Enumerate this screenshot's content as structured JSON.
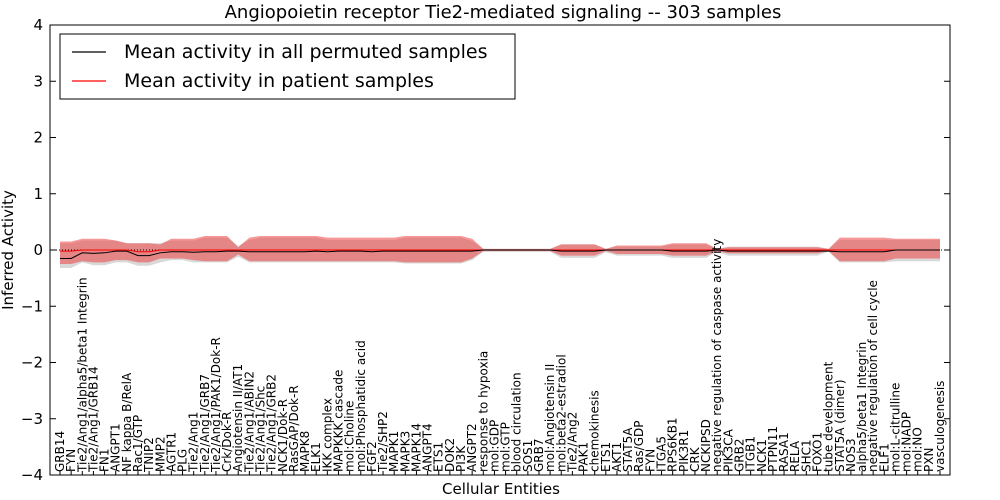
{
  "chart_data": {
    "type": "line",
    "title": "Angiopoietin receptor Tie2-mediated signaling -- 303 samples",
    "xlabel": "Cellular Entities",
    "ylabel": "Inferred Activity",
    "ylim": [
      -4,
      4
    ],
    "yticks": [
      -4,
      -3,
      -2,
      -1,
      0,
      1,
      2,
      3,
      4
    ],
    "ytick_labels": [
      "−4",
      "−3",
      "−2",
      "−1",
      "0",
      "1",
      "2",
      "3",
      "4"
    ],
    "legend_position": "top-left",
    "categories": [
      "GRB14",
      "FYN",
      "Tie2/Ang1/alpha5/beta1 Integrin",
      "Tie2/Ang1/GRB14",
      "FN1",
      "ANGPT1",
      "NF kappa B/RelA",
      "Rac1/GTP",
      "TNIP2",
      "MMP2",
      "AGTR1",
      "PLG",
      "Tie2/Ang1",
      "Tie2/Ang1/GRB7",
      "Tie2/Ang1/PAK1/Dok-R",
      "Crk/Dok-R",
      "Angiotensin II/AT1",
      "Tie2/Ang1/ABIN2",
      "Tie2/Ang1/Shc",
      "Tie2/Ang1/GRB2",
      "NCK1/Dok-R",
      "RasGAP/Dok-R",
      "MAPK8",
      "ELK1",
      "IKK complex",
      "MAPKKK cascade",
      "mol:Choline",
      "mol:Phosphatidic acid",
      "FGF2",
      "Tie2/SHP2",
      "MAPK1",
      "MAPK3",
      "MAPK14",
      "ANGPT4",
      "ETS1",
      "DOK2",
      "PI3K",
      "ANGPT2",
      "response to hypoxia",
      "mol:GDP",
      "mol:GTP",
      "blood circulation",
      "SOS1",
      "GRB7",
      "mol:Angiotensin II",
      "mol:beta2-estradiol",
      "Tie2/Ang2",
      "PAK1",
      "chemokinesis",
      "ETS1",
      "AKT1",
      "STAT5A",
      "Ras/GDP",
      "FYN",
      "ITGA5",
      "RPS6KB1",
      "PIK3R1",
      "CRK",
      "NCKIPSD",
      "negative regulation of caspase activity",
      "PIK3CA",
      "GRB2",
      "ITGB1",
      "NCK1",
      "PTPN11",
      "RASA1",
      "RELA",
      "SHC1",
      "FOXO1",
      "tube development",
      "STAT5A (dimer)",
      "NOS3",
      "alpha5/beta1 Integrin",
      "negative regulation of cell cycle",
      "ELF1",
      "mol:L-citrulline",
      "mol:NADP",
      "mol:NO",
      "PXN",
      "vasculogenesis"
    ],
    "series": [
      {
        "name": "Mean activity in all permuted samples",
        "color": "#000000",
        "values": [
          -0.15,
          -0.15,
          -0.05,
          -0.06,
          -0.05,
          -0.02,
          -0.02,
          -0.1,
          -0.1,
          -0.05,
          -0.03,
          -0.03,
          -0.04,
          -0.03,
          -0.03,
          -0.02,
          -0.02,
          -0.03,
          -0.03,
          -0.03,
          -0.03,
          -0.03,
          -0.03,
          -0.02,
          -0.03,
          -0.02,
          -0.02,
          -0.02,
          -0.03,
          -0.02,
          -0.02,
          -0.02,
          -0.02,
          -0.02,
          -0.02,
          -0.02,
          -0.02,
          -0.02,
          0.0,
          0.0,
          0.0,
          0.0,
          0.0,
          0.0,
          0.0,
          -0.02,
          -0.02,
          -0.02,
          -0.02,
          0.0,
          0.0,
          0.0,
          0.0,
          0.0,
          0.0,
          -0.02,
          -0.02,
          -0.02,
          -0.02,
          0.0,
          -0.02,
          -0.02,
          -0.02,
          -0.02,
          -0.02,
          -0.02,
          -0.02,
          -0.02,
          -0.02,
          -0.02,
          -0.03,
          -0.03,
          -0.03,
          -0.03,
          -0.03,
          0.0,
          0.0,
          0.0,
          0.0,
          0.0
        ],
        "band_upper": [
          0.12,
          0.12,
          0.17,
          0.17,
          0.17,
          0.17,
          0.12,
          0.12,
          0.12,
          0.12,
          0.17,
          0.17,
          0.17,
          0.22,
          0.22,
          0.22,
          0.07,
          0.18,
          0.22,
          0.22,
          0.22,
          0.22,
          0.22,
          0.22,
          0.18,
          0.18,
          0.18,
          0.18,
          0.18,
          0.18,
          0.18,
          0.22,
          0.22,
          0.22,
          0.22,
          0.22,
          0.22,
          0.16,
          0.02,
          0.02,
          0.02,
          0.02,
          0.02,
          0.02,
          0.02,
          0.1,
          0.1,
          0.1,
          0.1,
          0.02,
          0.06,
          0.06,
          0.06,
          0.06,
          0.06,
          0.1,
          0.1,
          0.1,
          0.1,
          0.02,
          0.06,
          0.06,
          0.06,
          0.06,
          0.06,
          0.06,
          0.06,
          0.06,
          0.06,
          0.02,
          0.18,
          0.18,
          0.18,
          0.18,
          0.18,
          0.18,
          0.18,
          0.18,
          0.18,
          0.18
        ],
        "band_lower": [
          -0.32,
          -0.32,
          -0.22,
          -0.27,
          -0.27,
          -0.22,
          -0.22,
          -0.28,
          -0.28,
          -0.22,
          -0.18,
          -0.18,
          -0.22,
          -0.22,
          -0.22,
          -0.22,
          -0.12,
          -0.22,
          -0.22,
          -0.22,
          -0.22,
          -0.22,
          -0.22,
          -0.22,
          -0.22,
          -0.22,
          -0.22,
          -0.22,
          -0.22,
          -0.22,
          -0.22,
          -0.24,
          -0.24,
          -0.24,
          -0.24,
          -0.24,
          -0.24,
          -0.18,
          -0.03,
          -0.03,
          -0.03,
          -0.03,
          -0.03,
          -0.03,
          -0.03,
          -0.14,
          -0.14,
          -0.14,
          -0.14,
          -0.04,
          -0.1,
          -0.1,
          -0.1,
          -0.1,
          -0.1,
          -0.14,
          -0.14,
          -0.14,
          -0.14,
          -0.03,
          -0.1,
          -0.1,
          -0.1,
          -0.1,
          -0.1,
          -0.1,
          -0.1,
          -0.1,
          -0.1,
          -0.03,
          -0.22,
          -0.22,
          -0.22,
          -0.22,
          -0.22,
          -0.2,
          -0.2,
          -0.2,
          -0.2,
          -0.2
        ]
      },
      {
        "name": "Mean activity in patient samples",
        "color": "#ff0000",
        "values": [
          -0.02,
          -0.02,
          0.0,
          0.0,
          0.0,
          0.0,
          0.0,
          -0.03,
          -0.03,
          0.0,
          0.0,
          0.0,
          0.0,
          0.0,
          0.0,
          0.0,
          0.0,
          0.0,
          0.0,
          0.0,
          0.0,
          0.0,
          0.0,
          0.0,
          0.0,
          0.0,
          0.0,
          0.0,
          0.0,
          0.0,
          0.0,
          0.0,
          0.0,
          0.0,
          0.0,
          0.0,
          0.0,
          0.0,
          0.0,
          0.0,
          0.0,
          0.0,
          0.0,
          0.0,
          0.0,
          0.0,
          0.0,
          0.0,
          0.0,
          0.0,
          0.0,
          0.0,
          0.0,
          0.0,
          0.0,
          0.0,
          0.0,
          0.0,
          0.0,
          0.0,
          0.0,
          0.0,
          0.0,
          0.0,
          0.0,
          0.0,
          0.0,
          0.0,
          0.0,
          0.0,
          0.0,
          0.0,
          0.0,
          0.0,
          0.0,
          0.0,
          0.0,
          0.0,
          0.0,
          0.0
        ],
        "band_upper": [
          0.15,
          0.15,
          0.2,
          0.2,
          0.2,
          0.17,
          0.12,
          0.12,
          0.12,
          0.1,
          0.2,
          0.2,
          0.2,
          0.25,
          0.25,
          0.25,
          0.05,
          0.22,
          0.25,
          0.25,
          0.25,
          0.25,
          0.25,
          0.25,
          0.22,
          0.22,
          0.22,
          0.22,
          0.22,
          0.22,
          0.22,
          0.25,
          0.25,
          0.25,
          0.25,
          0.25,
          0.25,
          0.2,
          0.02,
          0.02,
          0.02,
          0.02,
          0.02,
          0.02,
          0.02,
          0.1,
          0.1,
          0.1,
          0.1,
          0.02,
          0.08,
          0.08,
          0.08,
          0.08,
          0.08,
          0.12,
          0.12,
          0.12,
          0.12,
          0.02,
          0.05,
          0.05,
          0.05,
          0.05,
          0.05,
          0.05,
          0.05,
          0.05,
          0.05,
          0.02,
          0.22,
          0.22,
          0.22,
          0.22,
          0.22,
          0.2,
          0.2,
          0.2,
          0.2,
          0.2
        ],
        "band_lower": [
          -0.25,
          -0.25,
          -0.2,
          -0.22,
          -0.22,
          -0.18,
          -0.18,
          -0.22,
          -0.22,
          -0.15,
          -0.15,
          -0.15,
          -0.18,
          -0.2,
          -0.2,
          -0.2,
          -0.08,
          -0.2,
          -0.2,
          -0.2,
          -0.2,
          -0.2,
          -0.2,
          -0.2,
          -0.2,
          -0.2,
          -0.2,
          -0.2,
          -0.2,
          -0.2,
          -0.2,
          -0.22,
          -0.22,
          -0.22,
          -0.22,
          -0.22,
          -0.22,
          -0.15,
          -0.02,
          -0.02,
          -0.02,
          -0.02,
          -0.02,
          -0.02,
          -0.02,
          -0.1,
          -0.1,
          -0.1,
          -0.1,
          -0.02,
          -0.07,
          -0.07,
          -0.07,
          -0.07,
          -0.07,
          -0.1,
          -0.1,
          -0.1,
          -0.1,
          -0.02,
          -0.06,
          -0.06,
          -0.06,
          -0.06,
          -0.06,
          -0.06,
          -0.06,
          -0.06,
          -0.06,
          -0.02,
          -0.2,
          -0.2,
          -0.2,
          -0.2,
          -0.2,
          -0.15,
          -0.15,
          -0.15,
          -0.15,
          -0.15
        ]
      }
    ],
    "band_colors": {
      "permuted": "#c8c8c8",
      "patient": "#ee4444"
    }
  }
}
